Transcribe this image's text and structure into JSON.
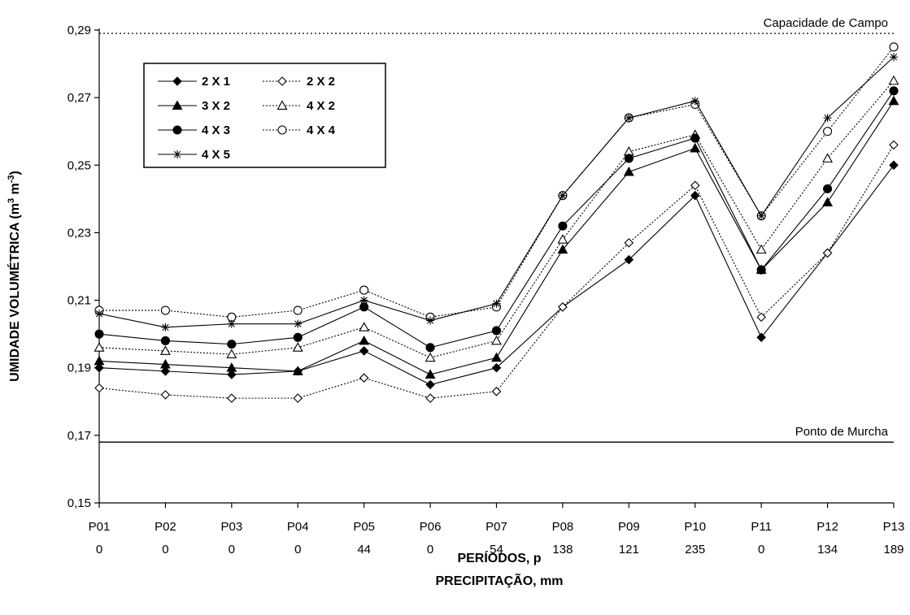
{
  "chart_data": {
    "type": "line",
    "ylabel_main": "UMIDADE VOLUMÉTRICA (m",
    "ylabel_sup1": "3",
    "ylabel_mid": " m",
    "ylabel_sup2": "-3",
    "ylabel_end": ")",
    "xlabel_line1": "PERÍODOS, p",
    "xlabel_line2": "PRECIPITAÇÃO, mm",
    "ylim": [
      0.15,
      0.29
    ],
    "yticks": [
      "0,15",
      "0,17",
      "0,19",
      "0,21",
      "0,23",
      "0,25",
      "0,27",
      "0,29"
    ],
    "yticks_values": [
      0.15,
      0.17,
      0.19,
      0.21,
      0.23,
      0.25,
      0.27,
      0.29
    ],
    "categories": [
      "P01",
      "P02",
      "P03",
      "P04",
      "P05",
      "P06",
      "P07",
      "P08",
      "P09",
      "P10",
      "P11",
      "P12",
      "P13"
    ],
    "precipitation": [
      "0",
      "0",
      "0",
      "0",
      "44",
      "0",
      "54",
      "138",
      "121",
      "235",
      "0",
      "134",
      "189"
    ],
    "reference_lines": [
      {
        "label": "Capacidade de Campo",
        "value": 0.289,
        "style": "dotted"
      },
      {
        "label": "Ponto de Murcha",
        "value": 0.168,
        "style": "solid"
      }
    ],
    "legend_position": "top-left",
    "grid": false,
    "series": [
      {
        "name": "2 X 1",
        "marker": "diamond-filled",
        "dash": "solid",
        "values": [
          0.19,
          0.189,
          0.188,
          0.189,
          0.195,
          0.185,
          0.19,
          0.208,
          0.222,
          0.241,
          0.199,
          0.224,
          0.25
        ]
      },
      {
        "name": "2 X 2",
        "marker": "diamond-open",
        "dash": "dotted",
        "values": [
          0.184,
          0.182,
          0.181,
          0.181,
          0.187,
          0.181,
          0.183,
          0.208,
          0.227,
          0.244,
          0.205,
          0.224,
          0.256
        ]
      },
      {
        "name": "3 X 2",
        "marker": "triangle-filled",
        "dash": "solid",
        "values": [
          0.192,
          0.191,
          0.19,
          0.189,
          0.198,
          0.188,
          0.193,
          0.225,
          0.248,
          0.255,
          0.219,
          0.239,
          0.269
        ]
      },
      {
        "name": "4 X 2",
        "marker": "triangle-open",
        "dash": "dotted",
        "values": [
          0.196,
          0.195,
          0.194,
          0.196,
          0.202,
          0.193,
          0.198,
          0.228,
          0.254,
          0.259,
          0.225,
          0.252,
          0.275
        ]
      },
      {
        "name": "4 X 3",
        "marker": "circle-filled",
        "dash": "solid",
        "values": [
          0.2,
          0.198,
          0.197,
          0.199,
          0.208,
          0.196,
          0.201,
          0.232,
          0.252,
          0.258,
          0.219,
          0.243,
          0.272
        ]
      },
      {
        "name": "4 X 4",
        "marker": "circle-open",
        "dash": "dotted",
        "values": [
          0.207,
          0.207,
          0.205,
          0.207,
          0.213,
          0.205,
          0.208,
          0.241,
          0.264,
          0.268,
          0.235,
          0.26,
          0.285
        ]
      },
      {
        "name": "4 X 5",
        "marker": "star",
        "dash": "solid",
        "values": [
          0.206,
          0.202,
          0.203,
          0.203,
          0.21,
          0.204,
          0.209,
          0.241,
          0.264,
          0.269,
          0.235,
          0.264,
          0.282
        ]
      }
    ]
  }
}
